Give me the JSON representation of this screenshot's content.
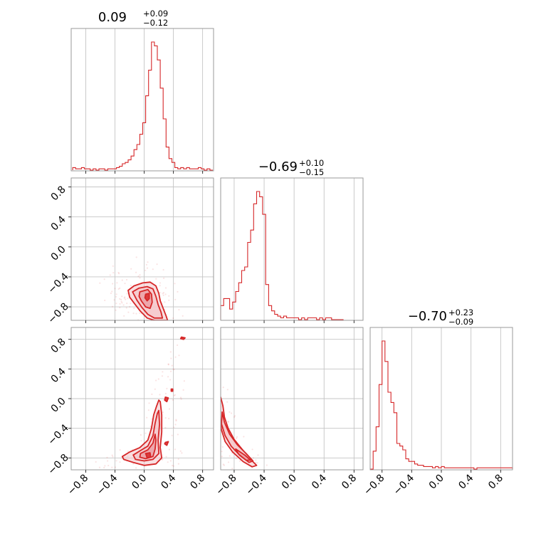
{
  "colors": {
    "line": "#d62728",
    "fill": "#f4c5c8",
    "fill_inner": "#e88d95",
    "frame": "#9a9a9a",
    "grid": "#c4c4c4"
  },
  "chart_data": {
    "type": "corner",
    "parameters": [
      {
        "title": {
          "value": "0.09",
          "plus": "+0.09",
          "minus": "−0.12"
        },
        "range": [
          -1.0,
          0.95
        ]
      },
      {
        "title": {
          "value": "−0.69",
          "plus": "+0.10",
          "minus": "−0.15"
        },
        "range": [
          -0.98,
          0.92
        ]
      },
      {
        "title": {
          "value": "−0.70",
          "plus": "+0.23",
          "minus": "−0.09"
        },
        "range": [
          -0.96,
          0.96
        ]
      }
    ],
    "ticks": [
      -0.8,
      -0.4,
      0.0,
      0.4,
      0.8
    ],
    "tick_labels": [
      "−0.8",
      "−0.4",
      "0.0",
      "0.4",
      "0.8"
    ],
    "grid": true,
    "histograms": [
      {
        "param": 0,
        "bins": [
          -0.98,
          -0.94,
          -0.9,
          -0.86,
          -0.82,
          -0.78,
          -0.74,
          -0.7,
          -0.66,
          -0.62,
          -0.58,
          -0.54,
          -0.5,
          -0.46,
          -0.42,
          -0.38,
          -0.34,
          -0.3,
          -0.26,
          -0.22,
          -0.18,
          -0.14,
          -0.1,
          -0.06,
          -0.02,
          0.02,
          0.06,
          0.1,
          0.14,
          0.18,
          0.22,
          0.26,
          0.3,
          0.34,
          0.38,
          0.42,
          0.46,
          0.5,
          0.54,
          0.58,
          0.62,
          0.66,
          0.7,
          0.74,
          0.78,
          0.82,
          0.86,
          0.9
        ],
        "counts": [
          2,
          1,
          1,
          2,
          1,
          1,
          0,
          1,
          0,
          1,
          1,
          0,
          1,
          1,
          1,
          2,
          3,
          5,
          6,
          8,
          11,
          16,
          20,
          28,
          37,
          58,
          78,
          100,
          97,
          86,
          64,
          40,
          18,
          9,
          6,
          2,
          1,
          2,
          1,
          2,
          1,
          1,
          1,
          2,
          1,
          0,
          1,
          0
        ]
      },
      {
        "param": 1,
        "bins": [
          -0.98,
          -0.94,
          -0.9,
          -0.86,
          -0.82,
          -0.78,
          -0.74,
          -0.7,
          -0.66,
          -0.62,
          -0.58,
          -0.54,
          -0.5,
          -0.46,
          -0.42,
          -0.38,
          -0.34,
          -0.3,
          -0.26,
          -0.22,
          -0.18,
          -0.14,
          -0.1,
          -0.06,
          -0.02,
          0.02,
          0.06,
          0.1,
          0.14,
          0.18,
          0.22,
          0.26,
          0.3,
          0.34,
          0.38,
          0.42,
          0.46,
          0.5,
          0.54,
          0.58,
          0.62
        ],
        "counts": [
          8,
          12,
          12,
          6,
          10,
          16,
          21,
          28,
          30,
          44,
          51,
          66,
          73,
          70,
          60,
          20,
          8,
          5,
          3,
          2,
          1,
          2,
          1,
          1,
          1,
          1,
          0,
          1,
          0,
          1,
          1,
          1,
          0,
          1,
          0,
          1,
          1,
          0,
          0,
          0,
          0
        ]
      },
      {
        "param": 2,
        "bins": [
          -0.96,
          -0.92,
          -0.88,
          -0.84,
          -0.8,
          -0.76,
          -0.72,
          -0.68,
          -0.64,
          -0.6,
          -0.56,
          -0.52,
          -0.48,
          -0.44,
          -0.4,
          -0.36,
          -0.32,
          -0.28,
          -0.24,
          -0.2,
          -0.16,
          -0.12,
          -0.08,
          -0.04,
          0.0,
          0.04,
          0.08,
          0.12,
          0.16,
          0.2,
          0.24,
          0.28,
          0.32,
          0.36,
          0.4,
          0.44,
          0.48,
          0.52,
          0.56,
          0.6,
          0.64,
          0.68,
          0.72,
          0.76,
          0.8,
          0.84,
          0.88,
          0.92
        ],
        "counts": [
          0,
          14,
          33,
          66,
          100,
          84,
          60,
          52,
          44,
          20,
          18,
          15,
          8,
          6,
          6,
          4,
          3,
          3,
          2,
          2,
          2,
          1,
          2,
          1,
          2,
          1,
          1,
          1,
          1,
          1,
          1,
          1,
          1,
          1,
          1,
          0,
          1,
          1,
          1,
          1,
          1,
          1,
          1,
          1,
          1,
          1,
          1,
          1
        ]
      }
    ],
    "contours": [
      {
        "x_param": 0,
        "y_param": 1,
        "levels": [
          [
            [
              -0.22,
              -0.58
            ],
            [
              -0.14,
              -0.52
            ],
            [
              -0.02,
              -0.48
            ],
            [
              0.08,
              -0.47
            ],
            [
              0.16,
              -0.52
            ],
            [
              0.2,
              -0.62
            ],
            [
              0.22,
              -0.72
            ],
            [
              0.26,
              -0.82
            ],
            [
              0.3,
              -0.92
            ],
            [
              0.32,
              -0.98
            ],
            [
              0.14,
              -0.98
            ],
            [
              0.04,
              -0.95
            ],
            [
              -0.05,
              -0.86
            ],
            [
              -0.13,
              -0.76
            ],
            [
              -0.2,
              -0.67
            ]
          ],
          [
            [
              -0.16,
              -0.6
            ],
            [
              -0.07,
              -0.55
            ],
            [
              0.04,
              -0.53
            ],
            [
              0.12,
              -0.56
            ],
            [
              0.16,
              -0.66
            ],
            [
              0.19,
              -0.77
            ],
            [
              0.23,
              -0.87
            ],
            [
              0.25,
              -0.95
            ],
            [
              0.14,
              -0.95
            ],
            [
              0.05,
              -0.9
            ],
            [
              -0.03,
              -0.81
            ],
            [
              -0.1,
              -0.71
            ]
          ],
          [
            [
              -0.06,
              -0.6
            ],
            [
              0.05,
              -0.57
            ],
            [
              0.1,
              -0.63
            ],
            [
              0.11,
              -0.74
            ],
            [
              0.08,
              -0.82
            ],
            [
              0.02,
              -0.8
            ],
            [
              -0.04,
              -0.72
            ],
            [
              -0.07,
              -0.66
            ]
          ],
          [
            [
              0.02,
              -0.63
            ],
            [
              0.07,
              -0.62
            ],
            [
              0.07,
              -0.69
            ],
            [
              0.04,
              -0.72
            ],
            [
              0.01,
              -0.68
            ]
          ]
        ]
      },
      {
        "x_param": 0,
        "y_param": 2,
        "levels": [
          [
            [
              -0.3,
              -0.78
            ],
            [
              -0.2,
              -0.72
            ],
            [
              -0.06,
              -0.66
            ],
            [
              0.05,
              -0.56
            ],
            [
              0.1,
              -0.4
            ],
            [
              0.13,
              -0.22
            ],
            [
              0.17,
              -0.1
            ],
            [
              0.2,
              -0.02
            ],
            [
              0.22,
              -0.04
            ],
            [
              0.24,
              -0.22
            ],
            [
              0.24,
              -0.45
            ],
            [
              0.22,
              -0.66
            ],
            [
              0.24,
              -0.8
            ],
            [
              0.16,
              -0.88
            ],
            [
              0.0,
              -0.9
            ],
            [
              -0.15,
              -0.86
            ],
            [
              -0.28,
              -0.82
            ]
          ],
          [
            [
              -0.15,
              -0.76
            ],
            [
              -0.05,
              -0.7
            ],
            [
              0.05,
              -0.64
            ],
            [
              0.12,
              -0.5
            ],
            [
              0.15,
              -0.33
            ],
            [
              0.18,
              -0.2
            ],
            [
              0.2,
              -0.16
            ],
            [
              0.21,
              -0.35
            ],
            [
              0.19,
              -0.56
            ],
            [
              0.2,
              -0.74
            ],
            [
              0.12,
              -0.82
            ],
            [
              0.0,
              -0.84
            ],
            [
              -0.12,
              -0.82
            ]
          ],
          [
            [
              -0.05,
              -0.74
            ],
            [
              0.05,
              -0.69
            ],
            [
              0.12,
              -0.6
            ],
            [
              0.15,
              -0.48
            ],
            [
              0.16,
              -0.56
            ],
            [
              0.15,
              -0.68
            ],
            [
              0.12,
              -0.78
            ],
            [
              0.02,
              -0.81
            ],
            [
              -0.06,
              -0.79
            ]
          ],
          [
            [
              0.02,
              -0.74
            ],
            [
              0.08,
              -0.73
            ],
            [
              0.09,
              -0.79
            ],
            [
              0.04,
              -0.8
            ]
          ],
          [
            [
              0.29,
              0.02
            ],
            [
              0.33,
              0.01
            ],
            [
              0.31,
              -0.04
            ],
            [
              0.28,
              -0.02
            ]
          ],
          [
            [
              0.29,
              -0.59
            ],
            [
              0.33,
              -0.58
            ],
            [
              0.31,
              -0.63
            ],
            [
              0.28,
              -0.61
            ]
          ],
          [
            [
              0.51,
              0.83
            ],
            [
              0.56,
              0.82
            ],
            [
              0.54,
              0.8
            ],
            [
              0.5,
              0.81
            ]
          ],
          [
            [
              0.37,
              0.13
            ],
            [
              0.39,
              0.13
            ],
            [
              0.39,
              0.1
            ],
            [
              0.37,
              0.1
            ]
          ]
        ]
      },
      {
        "x_param": 1,
        "y_param": 2,
        "levels": [
          [
            [
              -0.98,
              0.02
            ],
            [
              -0.95,
              -0.1
            ],
            [
              -0.93,
              -0.25
            ],
            [
              -0.88,
              -0.4
            ],
            [
              -0.8,
              -0.55
            ],
            [
              -0.68,
              -0.7
            ],
            [
              -0.58,
              -0.82
            ],
            [
              -0.5,
              -0.9
            ],
            [
              -0.56,
              -0.92
            ],
            [
              -0.68,
              -0.85
            ],
            [
              -0.82,
              -0.72
            ],
            [
              -0.92,
              -0.58
            ],
            [
              -0.97,
              -0.42
            ],
            [
              -0.99,
              -0.25
            ],
            [
              -1.0,
              -0.1
            ]
          ],
          [
            [
              -0.96,
              -0.18
            ],
            [
              -0.93,
              -0.32
            ],
            [
              -0.86,
              -0.48
            ],
            [
              -0.76,
              -0.62
            ],
            [
              -0.64,
              -0.74
            ],
            [
              -0.55,
              -0.84
            ],
            [
              -0.6,
              -0.86
            ],
            [
              -0.72,
              -0.77
            ],
            [
              -0.84,
              -0.64
            ],
            [
              -0.92,
              -0.5
            ],
            [
              -0.97,
              -0.34
            ]
          ],
          [
            [
              -0.78,
              -0.68
            ],
            [
              -0.66,
              -0.76
            ],
            [
              -0.58,
              -0.83
            ],
            [
              -0.64,
              -0.83
            ],
            [
              -0.74,
              -0.75
            ]
          ]
        ]
      }
    ]
  }
}
